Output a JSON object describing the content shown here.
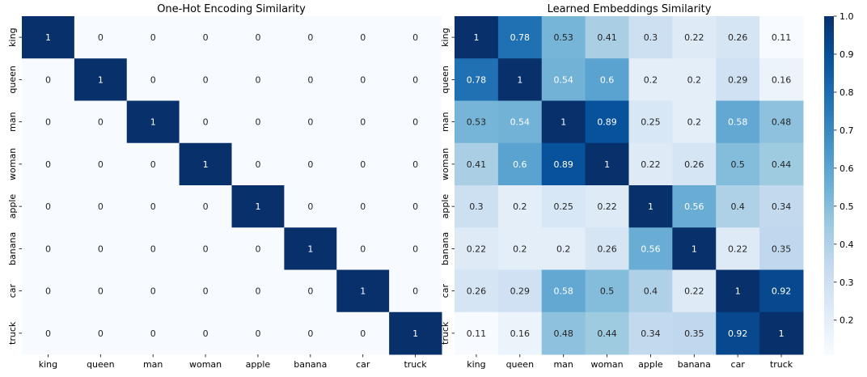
{
  "chart_data": [
    {
      "type": "heatmap",
      "title": "One-Hot Encoding Similarity",
      "x_labels": [
        "king",
        "queen",
        "man",
        "woman",
        "apple",
        "banana",
        "car",
        "truck"
      ],
      "y_labels": [
        "king",
        "queen",
        "man",
        "woman",
        "apple",
        "banana",
        "car",
        "truck"
      ],
      "colormap": "Blues",
      "vrange": [
        0,
        1
      ],
      "values": [
        [
          1,
          0,
          0,
          0,
          0,
          0,
          0,
          0
        ],
        [
          0,
          1,
          0,
          0,
          0,
          0,
          0,
          0
        ],
        [
          0,
          0,
          1,
          0,
          0,
          0,
          0,
          0
        ],
        [
          0,
          0,
          0,
          1,
          0,
          0,
          0,
          0
        ],
        [
          0,
          0,
          0,
          0,
          1,
          0,
          0,
          0
        ],
        [
          0,
          0,
          0,
          0,
          0,
          1,
          0,
          0
        ],
        [
          0,
          0,
          0,
          0,
          0,
          0,
          1,
          0
        ],
        [
          0,
          0,
          0,
          0,
          0,
          0,
          0,
          1
        ]
      ]
    },
    {
      "type": "heatmap",
      "title": "Learned Embeddings Similarity",
      "x_labels": [
        "king",
        "queen",
        "man",
        "woman",
        "apple",
        "banana",
        "car",
        "truck"
      ],
      "y_labels": [
        "king",
        "queen",
        "man",
        "woman",
        "apple",
        "banana",
        "car",
        "truck"
      ],
      "colormap": "Blues",
      "vrange": [
        0.11,
        1
      ],
      "values": [
        [
          1,
          0.78,
          0.53,
          0.41,
          0.3,
          0.22,
          0.26,
          0.11
        ],
        [
          0.78,
          1,
          0.54,
          0.6,
          0.2,
          0.2,
          0.29,
          0.16
        ],
        [
          0.53,
          0.54,
          1,
          0.89,
          0.25,
          0.2,
          0.58,
          0.48
        ],
        [
          0.41,
          0.6,
          0.89,
          1,
          0.22,
          0.26,
          0.5,
          0.44
        ],
        [
          0.3,
          0.2,
          0.25,
          0.22,
          1,
          0.56,
          0.4,
          0.34
        ],
        [
          0.22,
          0.2,
          0.2,
          0.26,
          0.56,
          1,
          0.22,
          0.35
        ],
        [
          0.26,
          0.29,
          0.58,
          0.5,
          0.4,
          0.22,
          1,
          0.92
        ],
        [
          0.11,
          0.16,
          0.48,
          0.44,
          0.34,
          0.35,
          0.92,
          1
        ]
      ],
      "colorbar": {
        "ticks": [
          "0.2",
          "0.3",
          "0.4",
          "0.5",
          "0.6",
          "0.7",
          "0.8",
          "0.9",
          "1.0"
        ],
        "range": [
          0.11,
          1
        ]
      }
    }
  ]
}
